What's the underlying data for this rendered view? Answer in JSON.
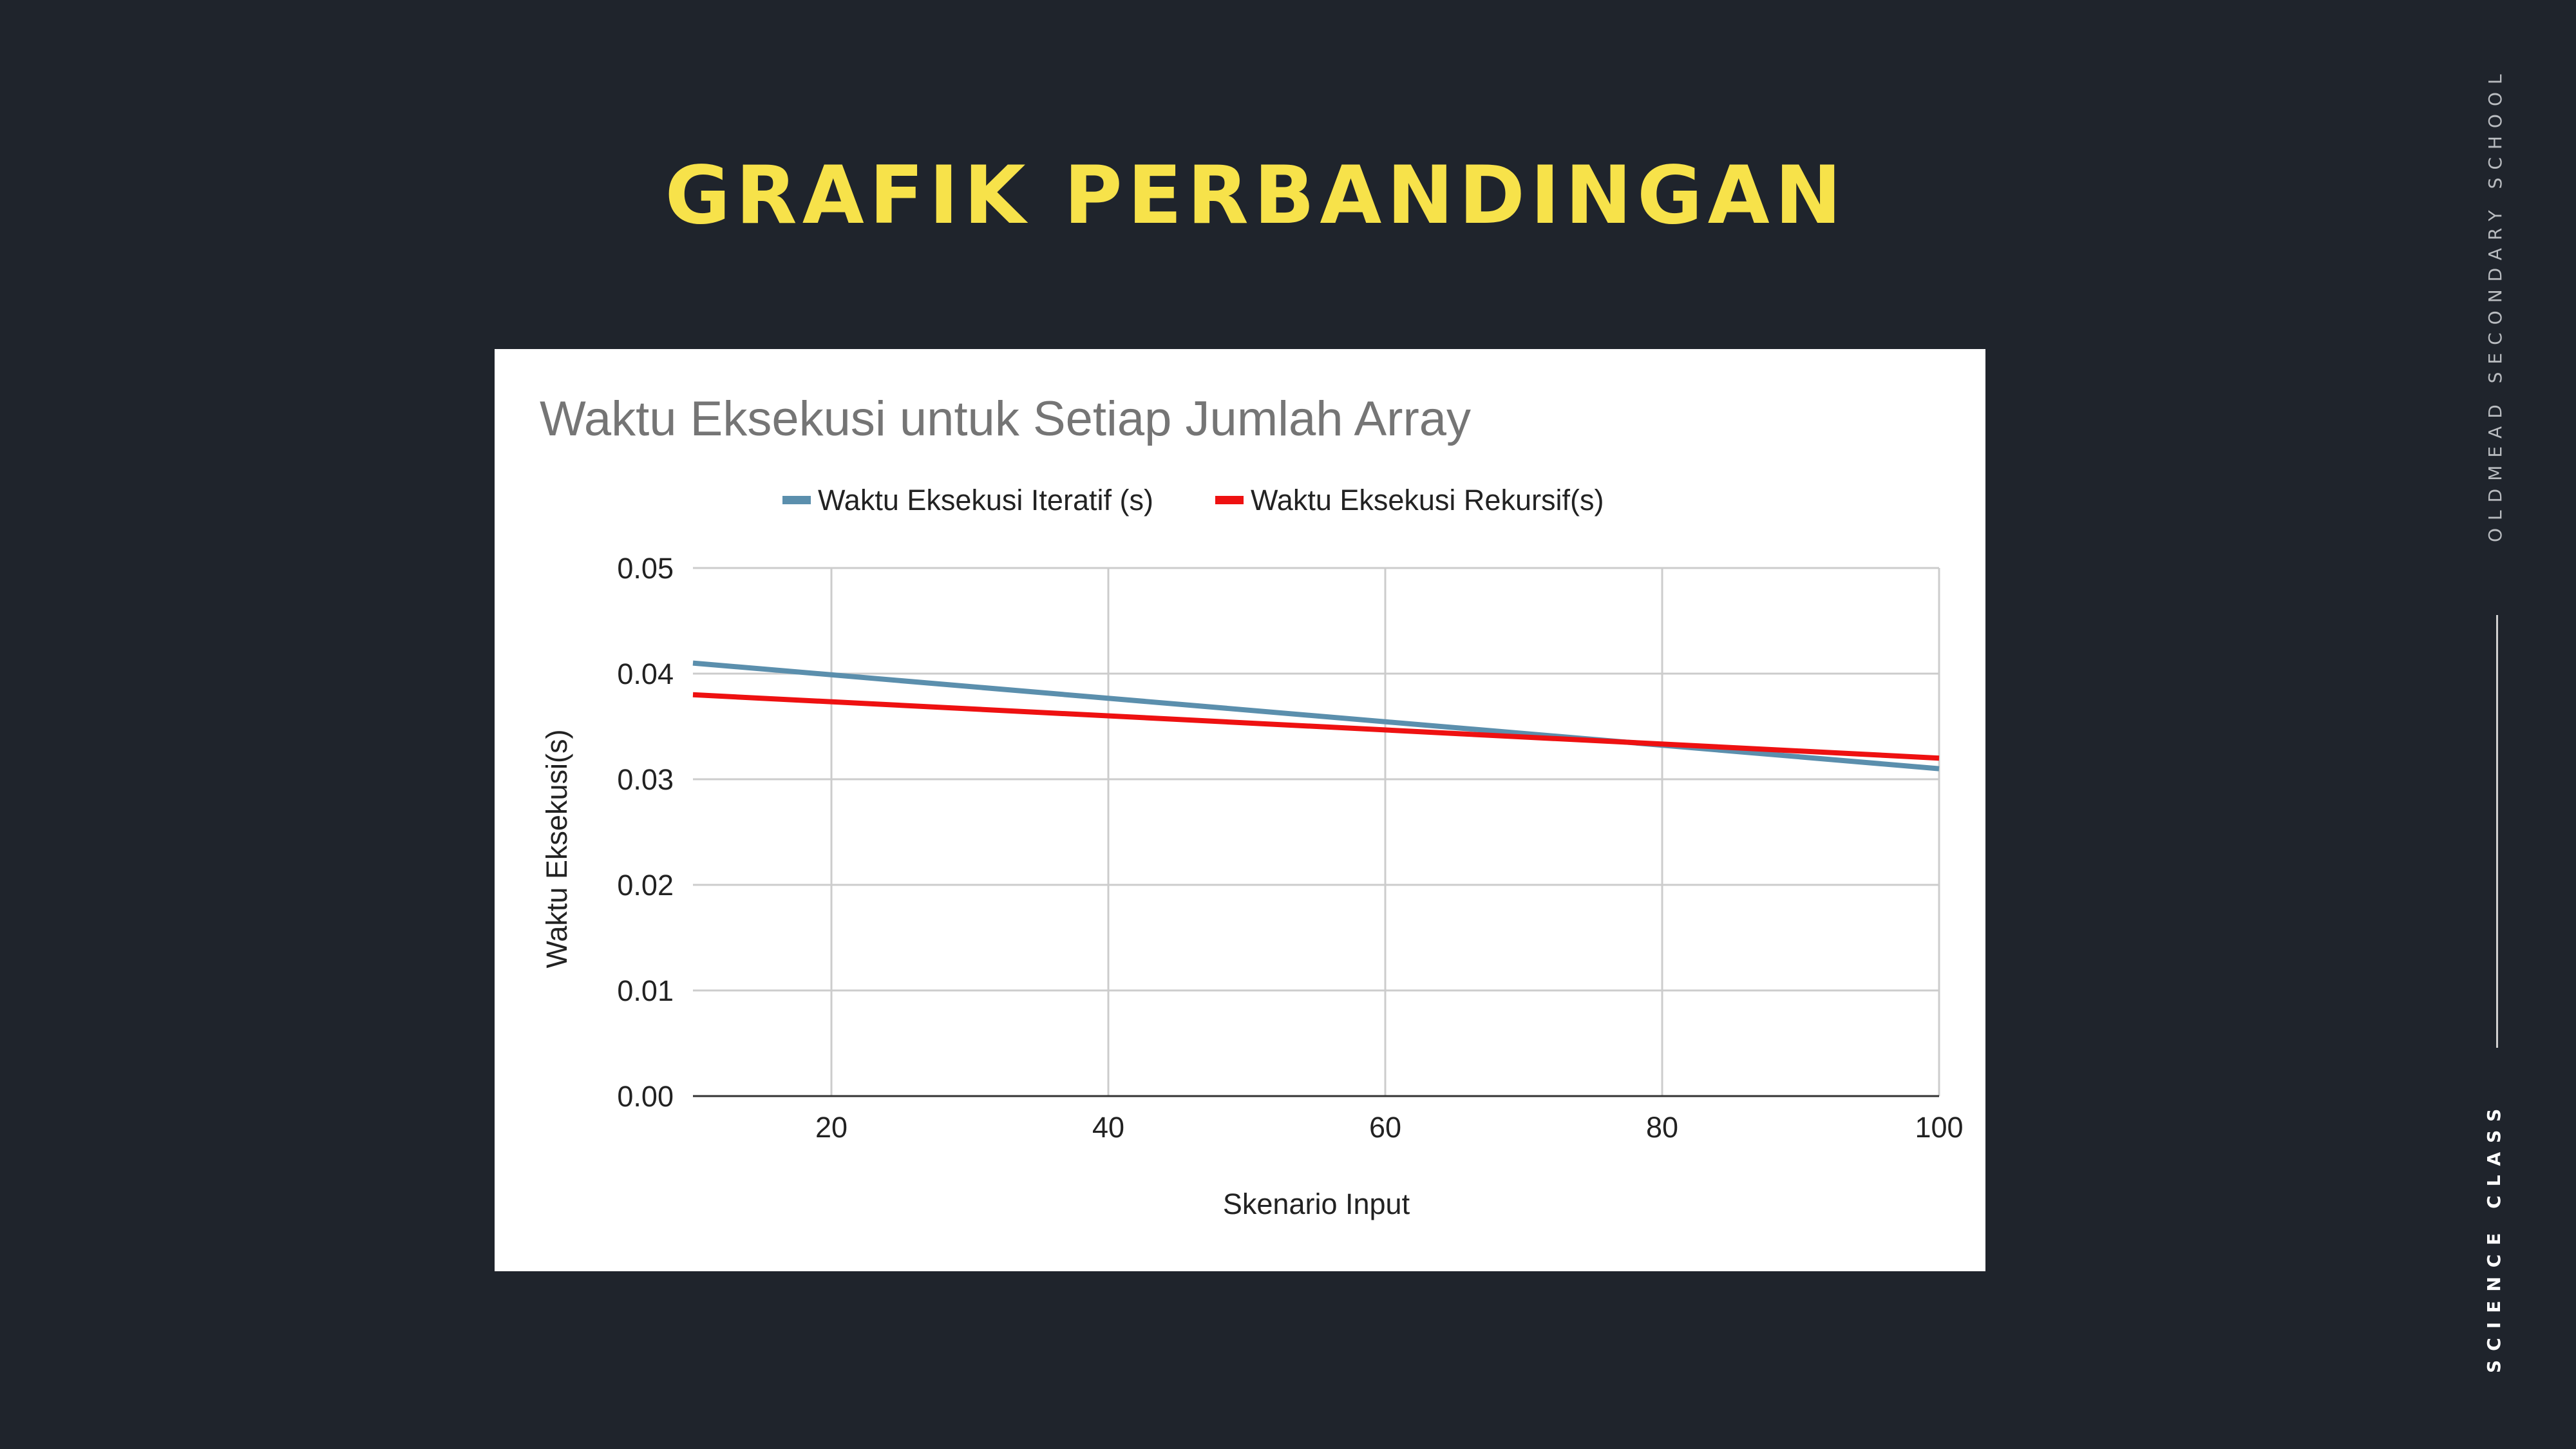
{
  "slide": {
    "title": "GRAFIK PERBANDINGAN",
    "side_label_top": "OLDMEAD SECONDARY SCHOOL",
    "side_label_bottom": "SCIENCE CLASS"
  },
  "chart_data": {
    "type": "line",
    "title": "Waktu Eksekusi untuk Setiap Jumlah Array",
    "xlabel": "Skenario Input",
    "ylabel": "Waktu Eksekusi(s)",
    "xlim": [
      10,
      100
    ],
    "ylim": [
      0,
      0.05
    ],
    "x_ticks": [
      20,
      40,
      60,
      80,
      100
    ],
    "y_ticks": [
      "0.00",
      "0.01",
      "0.02",
      "0.03",
      "0.04",
      "0.05"
    ],
    "grid": true,
    "legend_position": "top",
    "series": [
      {
        "name": "Waktu Eksekusi Iteratif (s)",
        "color": "#5b8fad",
        "x": [
          10,
          100
        ],
        "y": [
          0.041,
          0.031
        ]
      },
      {
        "name": "Waktu Eksekusi Rekursif(s)",
        "color": "#ee1111",
        "x": [
          10,
          100
        ],
        "y": [
          0.038,
          0.032
        ]
      }
    ]
  }
}
